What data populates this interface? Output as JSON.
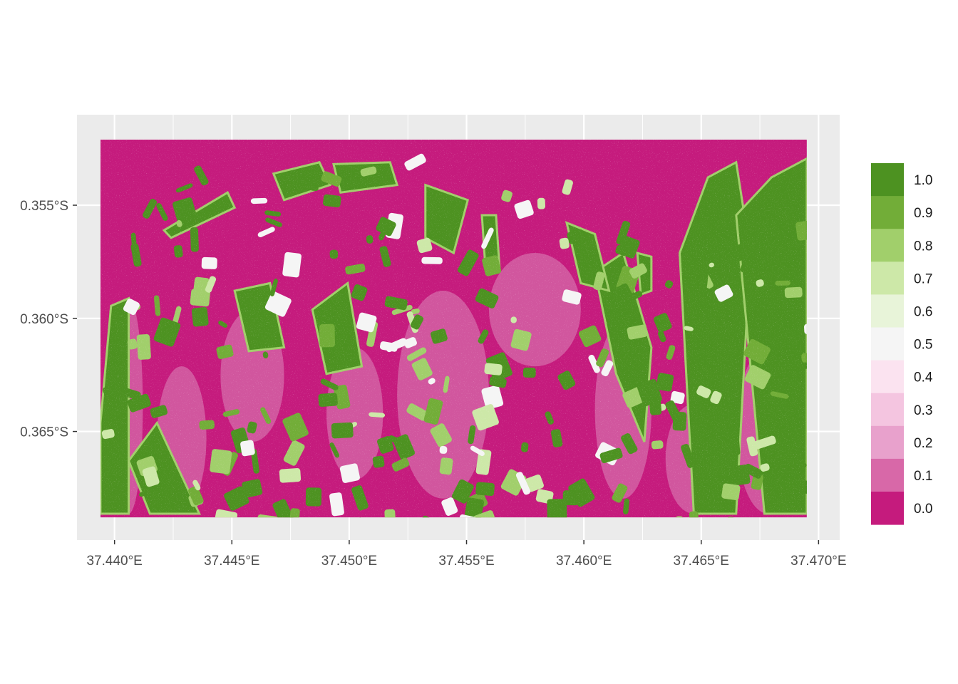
{
  "chart_data": {
    "type": "heatmap",
    "title": "",
    "xlabel": "",
    "ylabel": "",
    "x_ticks": [
      {
        "value": 37.44,
        "label": "37.440°E"
      },
      {
        "value": 37.445,
        "label": "37.445°E"
      },
      {
        "value": 37.45,
        "label": "37.450°E"
      },
      {
        "value": 37.455,
        "label": "37.455°E"
      },
      {
        "value": 37.46,
        "label": "37.460°E"
      },
      {
        "value": 37.465,
        "label": "37.465°E"
      },
      {
        "value": 37.47,
        "label": "37.470°E"
      }
    ],
    "y_ticks": [
      {
        "value": -0.355,
        "label": "0.355°S"
      },
      {
        "value": -0.36,
        "label": "0.360°S"
      },
      {
        "value": -0.365,
        "label": "0.365°S"
      }
    ],
    "xlim": [
      37.4384,
      37.4709
    ],
    "ylim": [
      -0.3698,
      -0.351
    ],
    "raster_extent": {
      "lon": [
        37.4394,
        37.4695
      ],
      "lat": [
        -0.3688,
        -0.3521
      ]
    },
    "grid": true,
    "legend_position": "right",
    "legend": {
      "type": "stepped-colorbar",
      "labels": [
        "1.0",
        "0.9",
        "0.8",
        "0.7",
        "0.6",
        "0.5",
        "0.4",
        "0.3",
        "0.2",
        "0.1",
        "0.0"
      ],
      "colors": [
        "#4d9221",
        "#72ad38",
        "#a1cf6b",
        "#cde8a8",
        "#e8f4d9",
        "#f5f5f5",
        "#fbe3f0",
        "#f4c5e0",
        "#e8a1cc",
        "#d868a8",
        "#c51b7d"
      ]
    },
    "colors": {
      "panel_background": "#ebebeb",
      "gridline": "#ffffff",
      "low": "#c51b7d",
      "high": "#4d9221"
    }
  }
}
